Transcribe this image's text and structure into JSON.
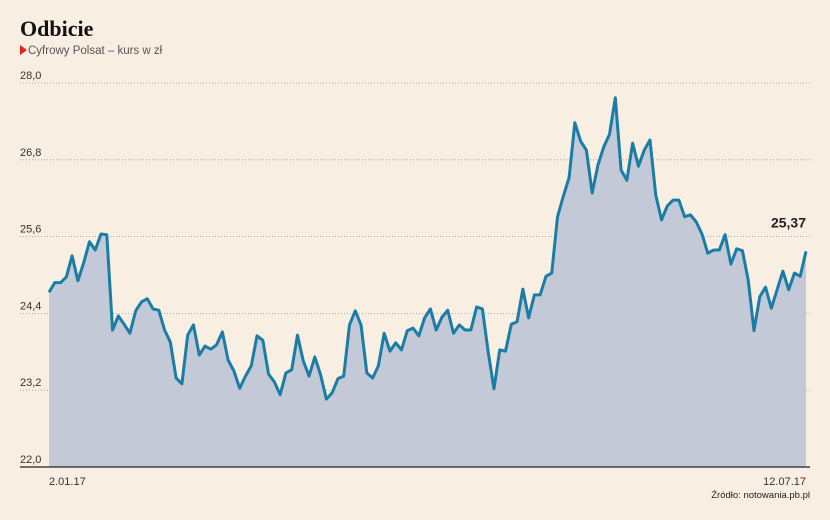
{
  "chart_data": {
    "type": "line",
    "title": "Odbicie",
    "subtitle": "Cyfrowy Polsat – kurs w zł",
    "source": "Źródło: notowania.pb.pl",
    "categories": [
      "2.01.17",
      null,
      null,
      null,
      null,
      null,
      null,
      null,
      null,
      null,
      null,
      null,
      null,
      null,
      null,
      null,
      null,
      null,
      null,
      null,
      null,
      null,
      null,
      null,
      null,
      null,
      null,
      null,
      null,
      null,
      null,
      null,
      null,
      null,
      null,
      null,
      null,
      null,
      null,
      null,
      null,
      null,
      null,
      null,
      null,
      null,
      null,
      null,
      null,
      null,
      null,
      null,
      null,
      null,
      null,
      null,
      null,
      null,
      null,
      null,
      null,
      null,
      null,
      null,
      null,
      null,
      null,
      null,
      null,
      null,
      null,
      null,
      null,
      null,
      null,
      null,
      null,
      null,
      null,
      null,
      null,
      null,
      null,
      null,
      null,
      null,
      null,
      null,
      null,
      null,
      null,
      null,
      null,
      null,
      null,
      null,
      null,
      null,
      null,
      null,
      null,
      null,
      null,
      null,
      null,
      null,
      null,
      null,
      null,
      null,
      null,
      null,
      null,
      null,
      null,
      null,
      null,
      null,
      null,
      null,
      null,
      null,
      null,
      null,
      null,
      null,
      null,
      null,
      null,
      null,
      null,
      "12.07.17"
    ],
    "values": [
      24.73,
      24.88,
      24.88,
      24.97,
      25.3,
      24.91,
      25.19,
      25.52,
      25.39,
      25.64,
      25.63,
      24.14,
      24.36,
      24.23,
      24.09,
      24.44,
      24.58,
      24.63,
      24.47,
      24.45,
      24.14,
      23.95,
      23.39,
      23.3,
      24.06,
      24.22,
      23.75,
      23.89,
      23.84,
      23.91,
      24.11,
      23.67,
      23.5,
      23.23,
      23.42,
      23.58,
      24.05,
      23.98,
      23.45,
      23.33,
      23.13,
      23.47,
      23.52,
      24.06,
      23.66,
      23.42,
      23.72,
      23.44,
      23.06,
      23.16,
      23.38,
      23.42,
      24.22,
      24.44,
      24.22,
      23.47,
      23.39,
      23.58,
      24.09,
      23.81,
      23.94,
      23.83,
      24.13,
      24.17,
      24.05,
      24.33,
      24.47,
      24.14,
      24.34,
      24.45,
      24.09,
      24.22,
      24.14,
      24.14,
      24.5,
      24.47,
      23.8,
      23.22,
      23.83,
      23.81,
      24.23,
      24.27,
      24.78,
      24.33,
      24.69,
      24.69,
      24.98,
      25.03,
      25.91,
      26.23,
      26.52,
      27.38,
      27.09,
      26.95,
      26.28,
      26.72,
      27.0,
      27.2,
      27.77,
      26.64,
      26.48,
      27.06,
      26.7,
      26.95,
      27.11,
      26.25,
      25.86,
      26.08,
      26.17,
      26.17,
      25.91,
      25.94,
      25.83,
      25.64,
      25.34,
      25.39,
      25.39,
      25.63,
      25.17,
      25.41,
      25.38,
      24.92,
      24.13,
      24.66,
      24.81,
      24.48,
      24.77,
      25.06,
      24.77,
      25.03,
      24.98,
      25.37
    ],
    "value_labels": [
      null,
      null,
      null,
      null,
      null,
      null,
      null,
      null,
      null,
      null,
      null,
      null,
      null,
      null,
      null,
      null,
      null,
      null,
      null,
      null,
      null,
      null,
      null,
      null,
      null,
      null,
      null,
      null,
      null,
      null,
      null,
      null,
      null,
      null,
      null,
      null,
      null,
      null,
      null,
      null,
      null,
      null,
      null,
      null,
      null,
      null,
      null,
      null,
      null,
      null,
      null,
      null,
      null,
      null,
      null,
      null,
      null,
      null,
      null,
      null,
      null,
      null,
      null,
      null,
      null,
      null,
      null,
      null,
      null,
      null,
      null,
      null,
      null,
      null,
      null,
      null,
      null,
      null,
      null,
      null,
      null,
      null,
      null,
      null,
      null,
      null,
      null,
      null,
      null,
      null,
      null,
      null,
      null,
      null,
      null,
      null,
      null,
      null,
      null,
      null,
      null,
      null,
      null,
      null,
      null,
      null,
      null,
      null,
      null,
      null,
      null,
      null,
      null,
      null,
      null,
      null,
      null,
      null,
      null,
      null,
      null,
      null,
      null,
      null,
      null,
      null,
      null,
      null,
      null,
      null,
      null,
      "25,37"
    ],
    "color": "#1a7da6",
    "area_color": "#c4c9d8",
    "ylim": [
      22,
      28
    ],
    "yticks": [
      {
        "value": 22,
        "label": "22,0"
      },
      {
        "value": 23.2,
        "label": "23,2"
      },
      {
        "value": 24.4,
        "label": "24,4"
      },
      {
        "value": 25.6,
        "label": "25,6"
      },
      {
        "value": 26.8,
        "label": "26,8"
      },
      {
        "value": 28,
        "label": "28,0"
      }
    ],
    "grid": true
  }
}
